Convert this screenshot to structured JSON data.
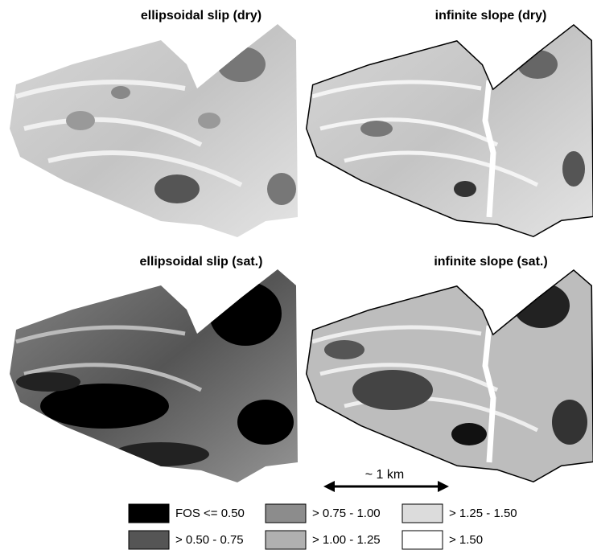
{
  "panels": [
    {
      "title": "ellipsoidal slip (dry)"
    },
    {
      "title": "infinite slope (dry)"
    },
    {
      "title": "ellipsoidal slip (sat.)"
    },
    {
      "title": "infinite slope (sat.)"
    }
  ],
  "scale_bar": {
    "label": "~ 1 km"
  },
  "legend": {
    "items": [
      {
        "label": "FOS <= 0.50",
        "color": "#000000"
      },
      {
        "label": "> 0.50 - 0.75",
        "color": "#555555"
      },
      {
        "label": "> 0.75 - 1.00",
        "color": "#8c8c8c"
      },
      {
        "label": "> 1.00 - 1.25",
        "color": "#b0b0b0"
      },
      {
        "label": "> 1.25 - 1.50",
        "color": "#dcdcdc"
      },
      {
        "label": "> 1.50",
        "color": "#ffffff"
      }
    ]
  }
}
